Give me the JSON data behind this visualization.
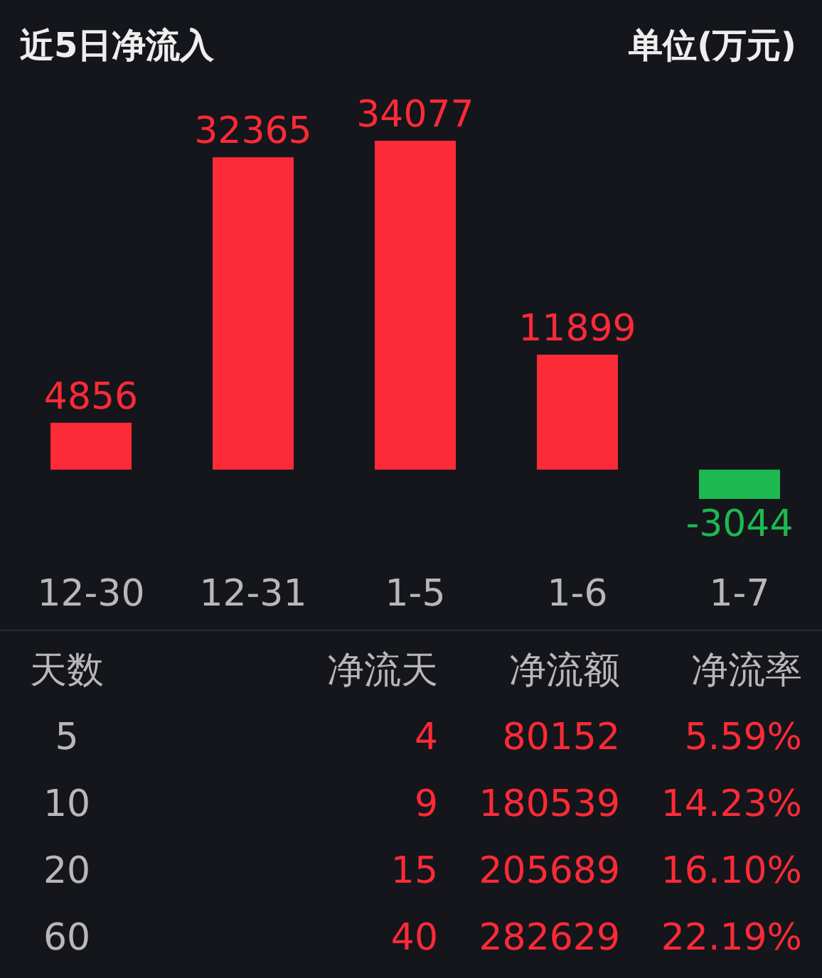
{
  "chart_data": [
    {
      "type": "bar",
      "title": "近5日净流入",
      "subtitle": "单位(万元)",
      "categories": [
        "12-30",
        "12-31",
        "1-5",
        "1-6",
        "1-7"
      ],
      "values": [
        4856,
        32365,
        34077,
        11899,
        -3044
      ],
      "colors": [
        "#fd2a37",
        "#fd2a37",
        "#fd2a37",
        "#fd2a37",
        "#1cb950"
      ],
      "data_labels": true
    },
    {
      "type": "other",
      "ylabel": "天数",
      "categories": [
        "净流天",
        "净流额",
        "净流率"
      ],
      "y_categories": [
        "5",
        "10",
        "20",
        "60"
      ],
      "color": "#fd2a37",
      "cell_labels": [
        [
          "4",
          "80152",
          "5.59%"
        ],
        [
          "9",
          "180539",
          "14.23%"
        ],
        [
          "15",
          "205689",
          "16.10%"
        ],
        [
          "40",
          "282629",
          "22.19%"
        ]
      ]
    }
  ]
}
